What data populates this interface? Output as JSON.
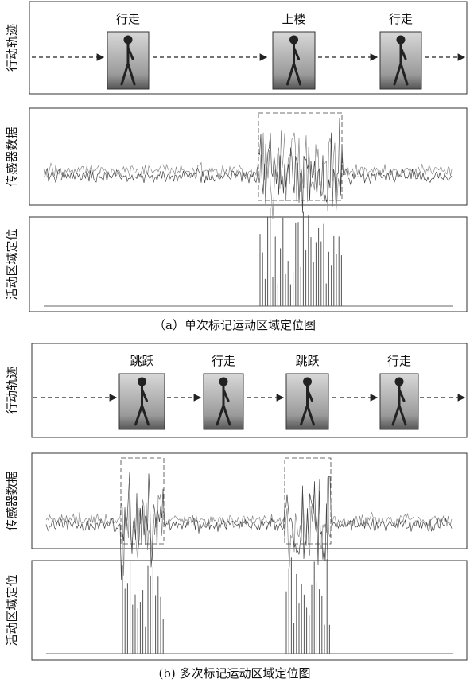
{
  "panel_a": {
    "row_labels": [
      "行动轨迹",
      "传感器数据",
      "活动区域定位"
    ],
    "activities": [
      "行走",
      "上楼",
      "行走"
    ],
    "caption": "（a）单次标记运动区域定位图"
  },
  "panel_b": {
    "row_labels": [
      "行动轨迹",
      "传感器数据",
      "活动区域定位"
    ],
    "activities": [
      "跳跃",
      "行走",
      "跳跃",
      "行走"
    ],
    "caption": "(b) 多次标记运动区域定位图"
  }
}
